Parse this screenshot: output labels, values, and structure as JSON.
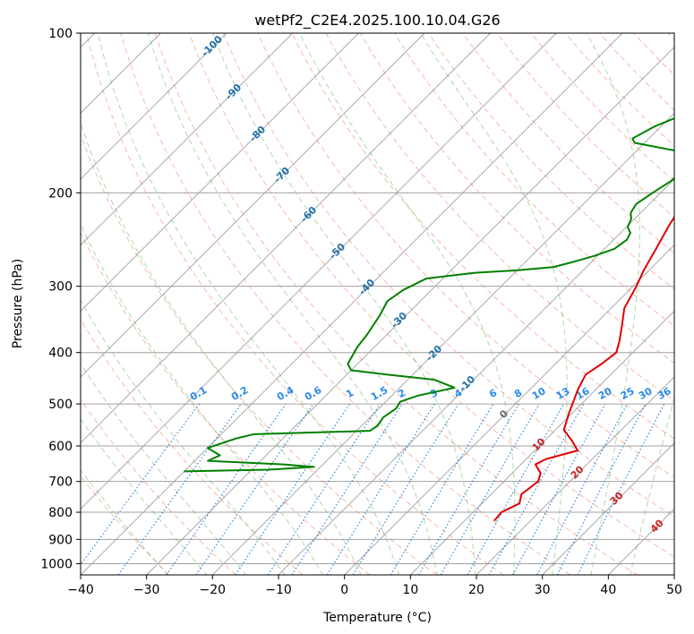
{
  "chart_data": {
    "type": "line",
    "title": "wetPf2_C2E4.2025.100.10.04.G26",
    "xlabel": "Temperature (°C)",
    "ylabel": "Pressure (hPa)",
    "xlim": [
      -40,
      50
    ],
    "ylim": [
      1050,
      100
    ],
    "y_scale": "log",
    "x_ticks": [
      -40,
      -30,
      -20,
      -10,
      0,
      10,
      20,
      30,
      40,
      50
    ],
    "y_ticks": [
      100,
      200,
      300,
      400,
      500,
      600,
      700,
      800,
      900,
      1000
    ],
    "grid": true,
    "series": [
      {
        "name": "",
        "color": "#e00000",
        "points": [
          [
            14.5,
            830
          ],
          [
            14.3,
            800
          ],
          [
            15.7,
            770
          ],
          [
            14.6,
            740
          ],
          [
            15.2,
            700
          ],
          [
            14.3,
            675
          ],
          [
            12.2,
            650
          ],
          [
            13.0,
            635
          ],
          [
            16.5,
            612
          ],
          [
            14.0,
            585
          ],
          [
            11.3,
            560
          ],
          [
            9.5,
            520
          ],
          [
            7.3,
            470
          ],
          [
            6.2,
            440
          ],
          [
            7.0,
            420
          ],
          [
            7.5,
            400
          ],
          [
            6.2,
            380
          ],
          [
            4.2,
            355
          ],
          [
            2.0,
            330
          ],
          [
            0.5,
            300
          ],
          [
            -0.8,
            280
          ],
          [
            -2.2,
            255
          ],
          [
            -3.8,
            230
          ],
          [
            -4.9,
            210
          ],
          [
            -5.3,
            195
          ],
          [
            -5.1,
            185
          ],
          [
            -3.6,
            178
          ],
          [
            -0.2,
            172
          ],
          [
            3.5,
            167
          ],
          [
            8.3,
            160
          ],
          [
            11.0,
            150
          ],
          [
            13.0,
            140
          ],
          [
            14.3,
            133
          ],
          [
            14.5,
            125
          ],
          [
            14.3,
            117
          ],
          [
            14.5,
            110
          ],
          [
            15.7,
            103
          ],
          [
            17.0,
            100
          ]
        ]
      },
      {
        "name": "",
        "color": "#008000",
        "points": [
          [
            -40.0,
            670
          ],
          [
            -27.4,
            665
          ],
          [
            -21.0,
            657
          ],
          [
            -26.0,
            650
          ],
          [
            -38.0,
            640
          ],
          [
            -37.0,
            625
          ],
          [
            -40.0,
            605
          ],
          [
            -37.0,
            580
          ],
          [
            -35.0,
            570
          ],
          [
            -18.0,
            562
          ],
          [
            -17.6,
            550
          ],
          [
            -18.0,
            530
          ],
          [
            -17.4,
            510
          ],
          [
            -17.8,
            495
          ],
          [
            -16.0,
            482
          ],
          [
            -11.7,
            466
          ],
          [
            -16.0,
            450
          ],
          [
            -24.0,
            440
          ],
          [
            -30.0,
            432
          ],
          [
            -31.5,
            420
          ],
          [
            -32.6,
            390
          ],
          [
            -33.0,
            370
          ],
          [
            -34.0,
            340
          ],
          [
            -35.0,
            320
          ],
          [
            -34.3,
            305
          ],
          [
            -32.5,
            290
          ],
          [
            -26.0,
            283
          ],
          [
            -20.0,
            280
          ],
          [
            -15.0,
            276
          ],
          [
            -12.8,
            270
          ],
          [
            -10.5,
            263
          ],
          [
            -8.5,
            255
          ],
          [
            -8.0,
            245
          ],
          [
            -8.5,
            238
          ],
          [
            -9.8,
            232
          ],
          [
            -10.5,
            224
          ],
          [
            -11.5,
            218
          ],
          [
            -12.0,
            210
          ],
          [
            -11.2,
            200
          ],
          [
            -10.2,
            190
          ],
          [
            -10.0,
            180
          ],
          [
            -11.0,
            172
          ],
          [
            -13.5,
            167
          ],
          [
            -17.5,
            164
          ],
          [
            -21.5,
            161
          ],
          [
            -22.5,
            158
          ],
          [
            -21.0,
            150
          ],
          [
            -17.5,
            140
          ],
          [
            -15.0,
            130
          ],
          [
            -12.6,
            120
          ],
          [
            -10.2,
            113
          ],
          [
            -8.7,
            107
          ],
          [
            -8.5,
            100
          ]
        ]
      }
    ],
    "annotations": {
      "dry_adiabat_labels": [
        "-100",
        "-90",
        "-80",
        "-70",
        "-60",
        "-50",
        "-40",
        "-30",
        "-20",
        "-10"
      ],
      "moist_adiabat_labels": [
        "0",
        "10",
        "20",
        "30",
        "40"
      ],
      "mixing_ratio_labels": [
        "0.1",
        "0.2",
        "0.4",
        "0.6",
        "1",
        "1.5",
        "2",
        "3",
        "4",
        "6",
        "8",
        "10",
        "13",
        "16",
        "20",
        "25",
        "30",
        "36"
      ]
    },
    "colors": {
      "isotherm": "#808080",
      "isobar": "#a0a0a0",
      "dry_adiabat": "#f08060",
      "moist_adiabat": "#60b060",
      "mixing_ratio": "#1a7ad8",
      "dry_label": "#1f6fa8",
      "moist_label": "#cc2222",
      "mixing_label": "#2a8ae8",
      "moist_zero_label": "#666666"
    }
  }
}
